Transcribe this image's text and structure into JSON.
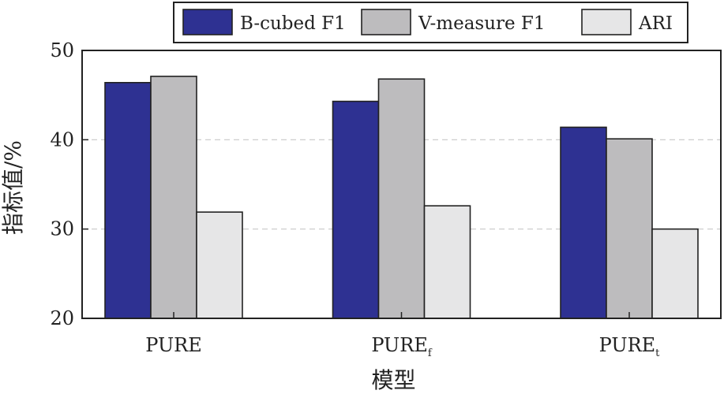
{
  "chart_data": {
    "type": "bar",
    "categories": [
      {
        "main": "PURE",
        "sub": ""
      },
      {
        "main": "PURE",
        "sub": "f"
      },
      {
        "main": "PURE",
        "sub": "t"
      }
    ],
    "series": [
      {
        "name": "B-cubed F1",
        "color": "#2e3192",
        "values": [
          46.4,
          44.3,
          41.4
        ]
      },
      {
        "name": "V-measure F1",
        "color": "#bdbcbe",
        "values": [
          47.1,
          46.8,
          40.1
        ]
      },
      {
        "name": "ARI",
        "color": "#e6e6e7",
        "values": [
          31.9,
          32.6,
          30.0
        ]
      }
    ],
    "xlabel": "模型",
    "ylabel": "指标值/%",
    "ylim": [
      20,
      50
    ],
    "yticks": [
      "20",
      "30",
      "40",
      "50"
    ],
    "grid": true,
    "legend_position": "top"
  }
}
